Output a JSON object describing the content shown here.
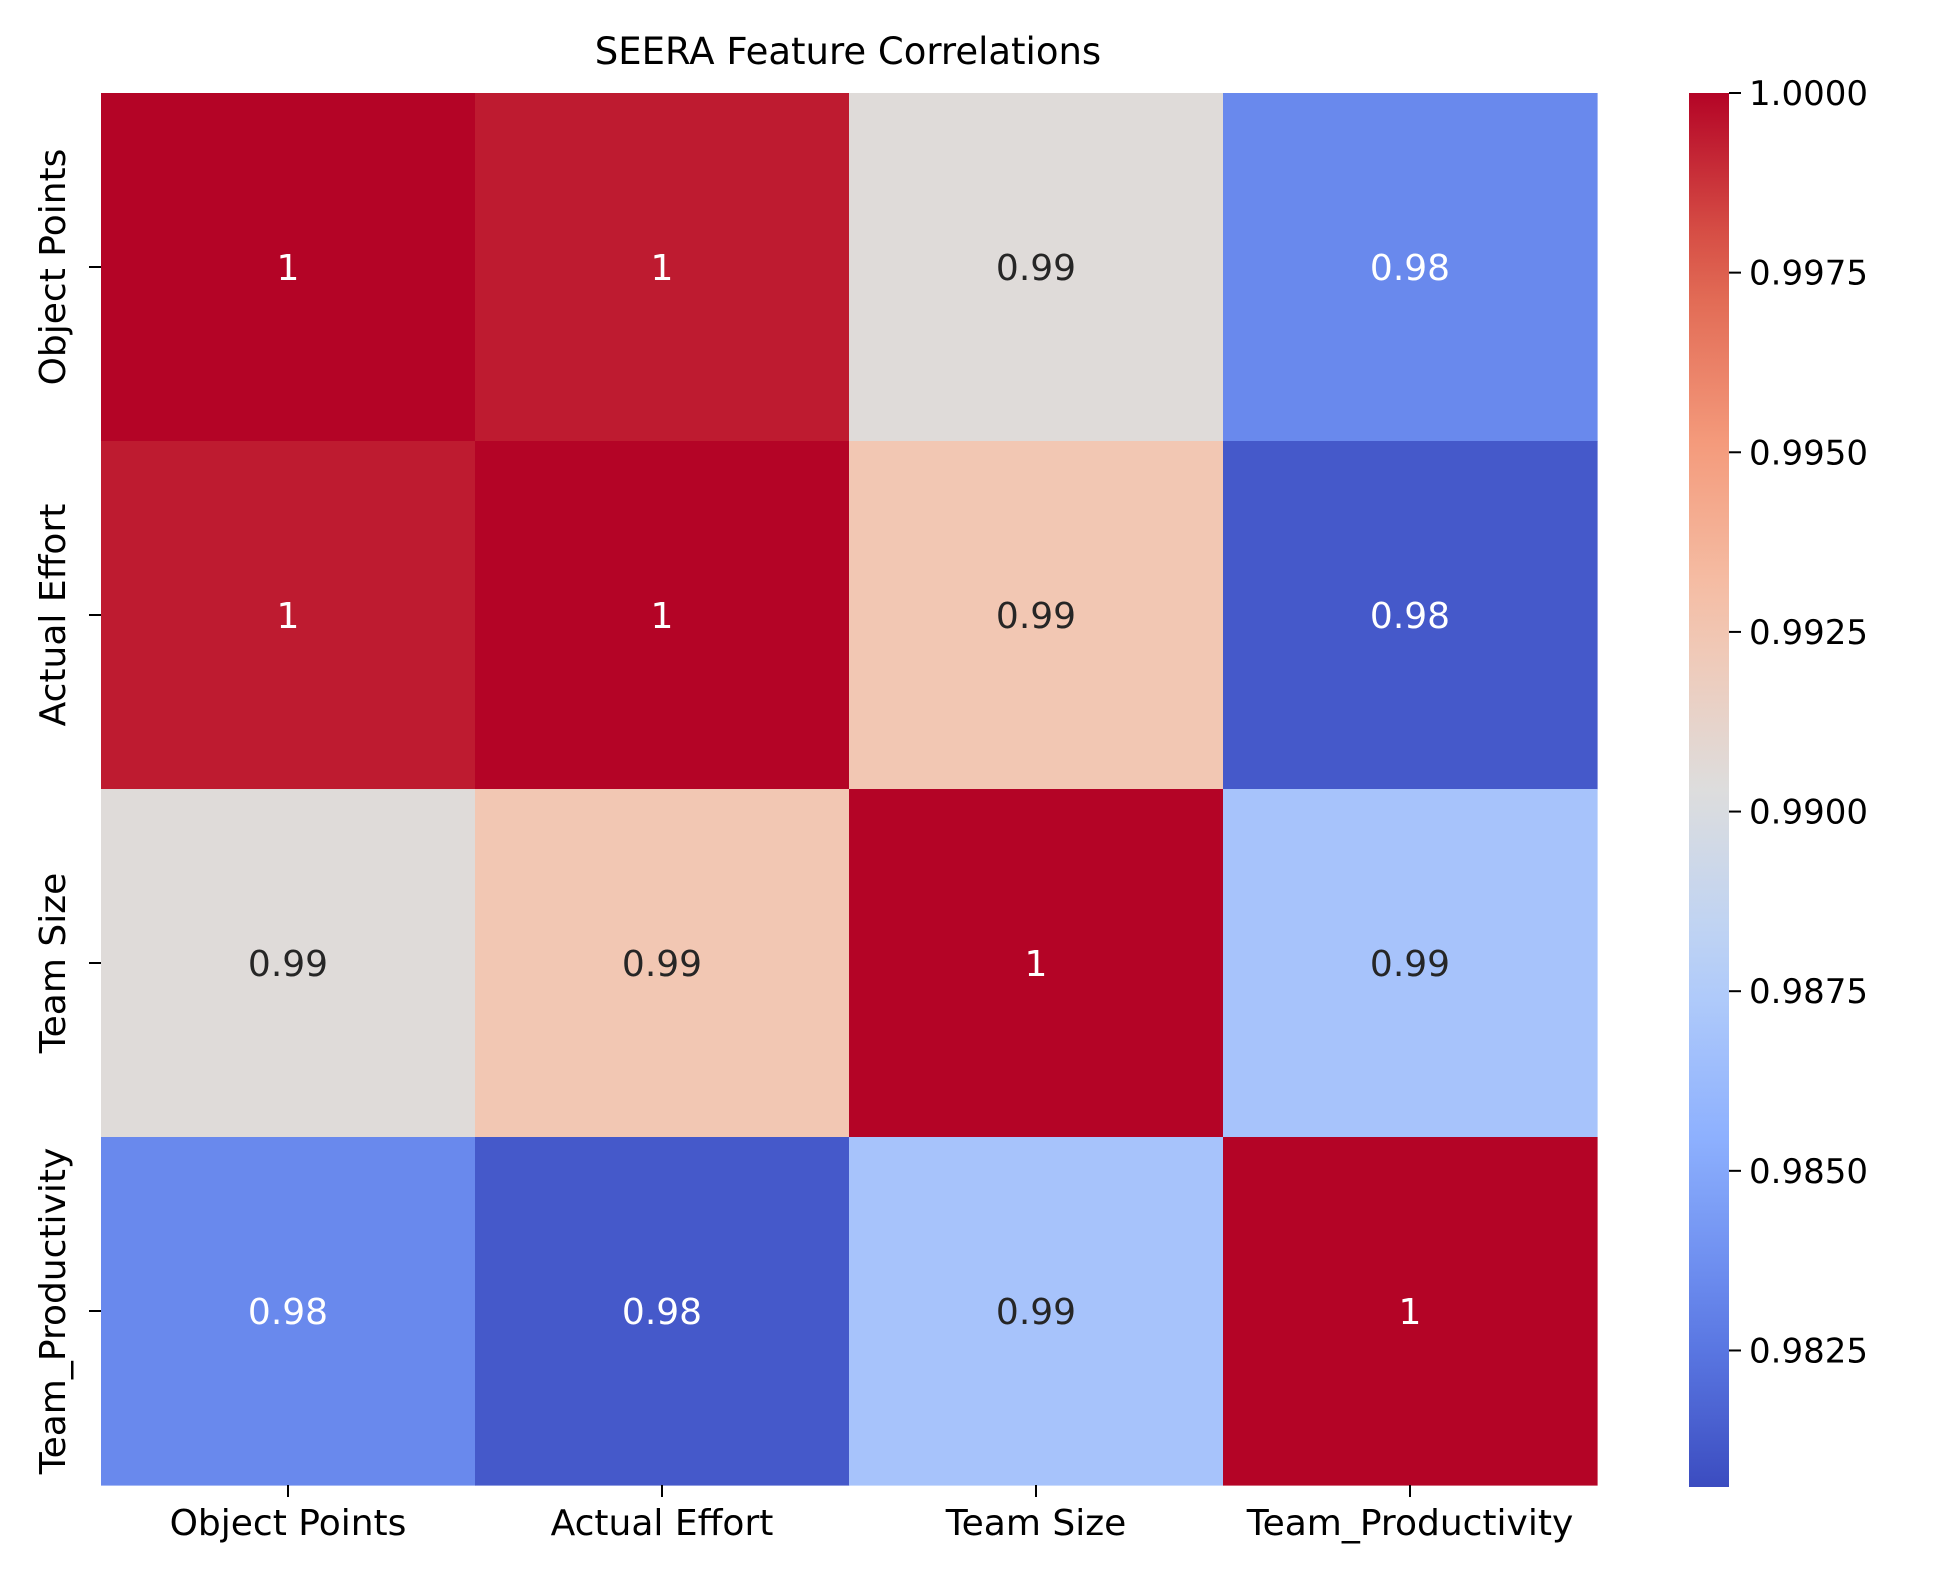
{
  "chart_data": {
    "type": "heatmap",
    "title": "SEERA Feature Correlations",
    "xlabel": "",
    "ylabel": "",
    "x_categories": [
      "Object Points",
      "Actual Effort",
      "Team Size",
      "Team_Productivity"
    ],
    "y_categories": [
      "Object Points",
      "Actual Effort",
      "Team Size",
      "Team_Productivity"
    ],
    "values": [
      [
        1.0,
        0.9994,
        0.9905,
        0.9834
      ],
      [
        0.9994,
        1.0,
        0.9924,
        0.9812
      ],
      [
        0.9905,
        0.9924,
        1.0,
        0.9869
      ],
      [
        0.9834,
        0.9812,
        0.9869,
        1.0
      ]
    ],
    "annotations": [
      [
        "1",
        "1",
        "0.99",
        "0.98"
      ],
      [
        "1",
        "1",
        "0.99",
        "0.98"
      ],
      [
        "0.99",
        "0.99",
        "1",
        "0.99"
      ],
      [
        "0.98",
        "0.98",
        "0.99",
        "1"
      ]
    ],
    "colormap": "coolwarm",
    "colorbar": {
      "min": 0.9806,
      "max": 1.0,
      "ticks": [
        1.0,
        0.9975,
        0.995,
        0.9925,
        0.99,
        0.9875,
        0.985,
        0.9825
      ],
      "tick_labels": [
        "1.0000",
        "0.9975",
        "0.9950",
        "0.9925",
        "0.9900",
        "0.9875",
        "0.9850",
        "0.9825"
      ]
    },
    "legend": "colorbar-right"
  }
}
